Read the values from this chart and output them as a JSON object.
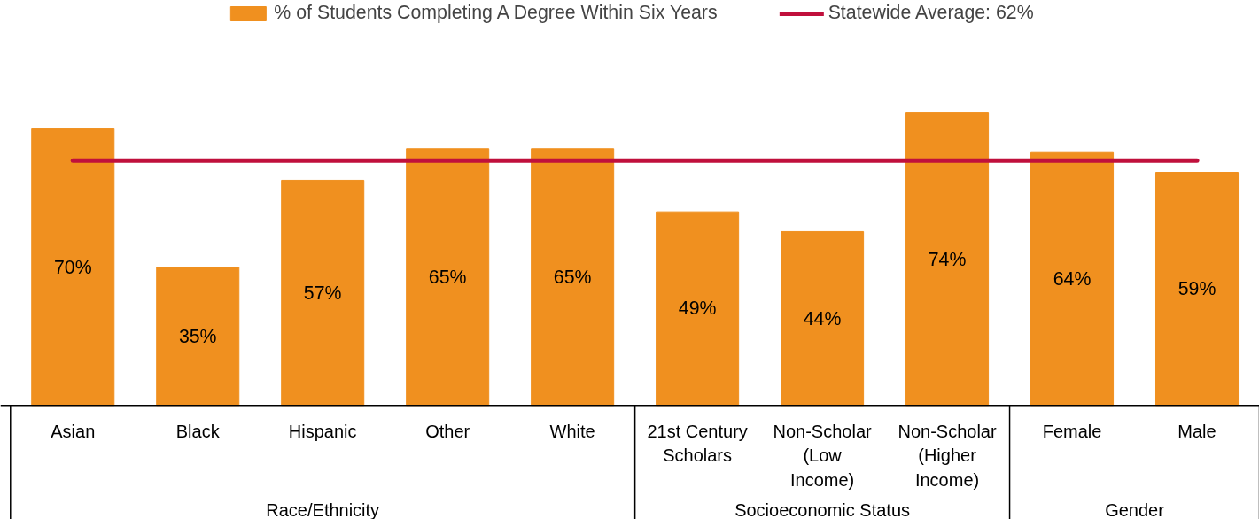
{
  "chart_data": {
    "type": "bar",
    "categories": [
      "Asian",
      "Black",
      "Hispanic",
      "Other",
      "White",
      "21st Century\nScholars",
      "Non-Scholar\n(Low\nIncome)",
      "Non-Scholar\n(Higher\nIncome)",
      "Female",
      "Male"
    ],
    "series": [
      {
        "name": "% of Students Completing A Degree Within Six Years",
        "color": "#f0901f",
        "values": [
          70,
          35,
          57,
          65,
          65,
          49,
          44,
          74,
          64,
          59
        ],
        "value_labels": [
          "70%",
          "35%",
          "57%",
          "65%",
          "65%",
          "49%",
          "44%",
          "74%",
          "64%",
          "59%"
        ]
      }
    ],
    "ref_lines": [
      {
        "axis": "y",
        "value": 62,
        "label": "Statewide Average: 62%",
        "color": "#c0103c"
      }
    ],
    "annotations": [
      "Race/Ethnicity",
      "Socioeconomic Status",
      "Gender"
    ],
    "tick_labels": "x",
    "legend": "top"
  }
}
